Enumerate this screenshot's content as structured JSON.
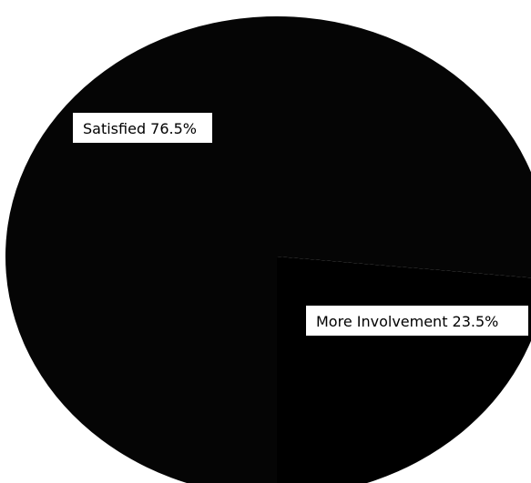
{
  "chart_data": {
    "type": "pie",
    "slices": [
      {
        "label": "Satisfied",
        "value": 76.5,
        "text": "Satisfied 76.5%",
        "color": "#050505"
      },
      {
        "label": "More Involvement",
        "value": 23.5,
        "text": "More Involvement 23.5%",
        "color": "#000000"
      }
    ],
    "title": "",
    "legend": "none",
    "background": "#ffffff"
  }
}
